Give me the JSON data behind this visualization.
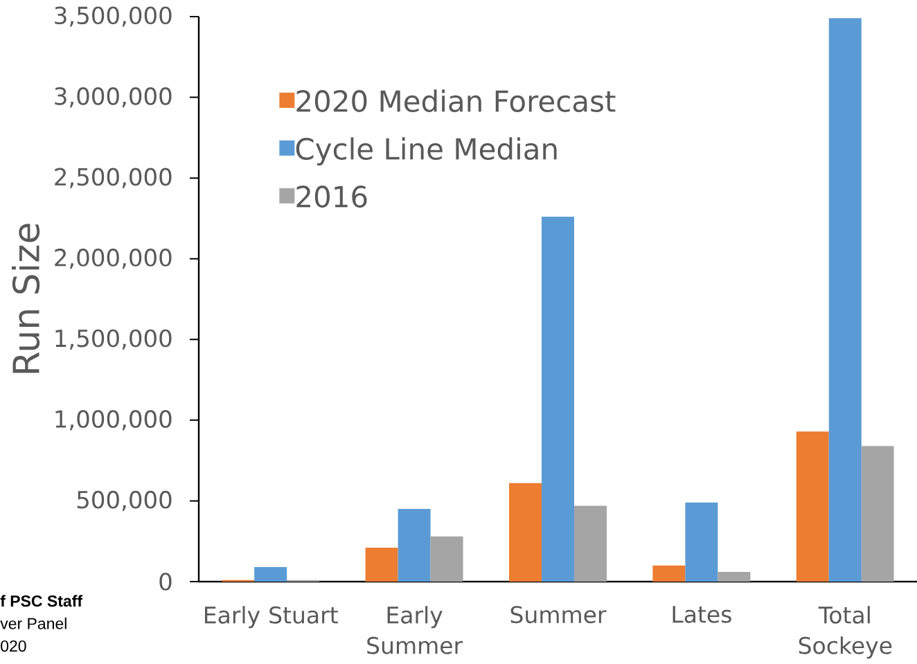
{
  "chart_data": {
    "type": "bar",
    "categories": [
      "Early Stuart",
      "Early Summer",
      "Summer",
      "Lates",
      "Total Sockeye"
    ],
    "series": [
      {
        "name": "2020 Median Forecast",
        "color": "#ed7d31",
        "values": [
          10000,
          210000,
          610000,
          100000,
          930000
        ]
      },
      {
        "name": "Cycle Line Median",
        "color": "#5b9bd5",
        "values": [
          90000,
          450000,
          2260000,
          490000,
          3490000
        ]
      },
      {
        "name": "2016",
        "color": "#a5a5a5",
        "values": [
          10000,
          280000,
          470000,
          60000,
          840000
        ]
      }
    ],
    "ylabel": "Run Size",
    "ylim": [
      0,
      3500000
    ],
    "yticks": [
      0,
      {
        "value": 500000,
        "label": "500,000"
      },
      {
        "value": 1000000,
        "label": "1,000,000"
      },
      {
        "value": 1500000,
        "label": "1,500,000"
      },
      {
        "value": 2000000,
        "label": "2,000,000"
      },
      {
        "value": 2500000,
        "label": "2,500,000"
      },
      {
        "value": 3000000,
        "label": "3,000,000"
      },
      {
        "value": 3500000,
        "label": "3,500,000"
      }
    ],
    "legend": "top left",
    "annotations": [
      "f PSC Staff",
      "ver Panel",
      "020"
    ]
  }
}
